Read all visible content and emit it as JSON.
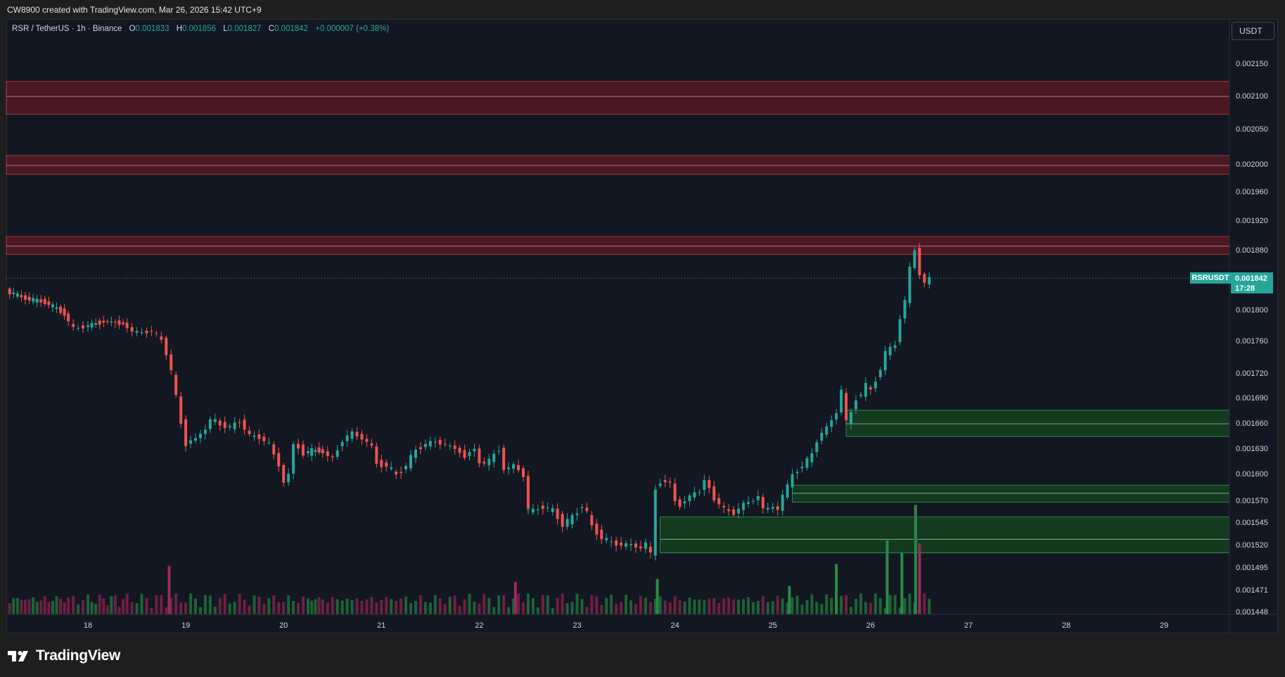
{
  "caption": "CW8900 created with TradingView.com, Mar 26, 2026 15:42 UTC+9",
  "legend": {
    "symbol": "RSR / TetherUS · 1h · Binance",
    "o_label": "O",
    "o_value": "0.001833",
    "h_label": "H",
    "h_value": "0.001856",
    "l_label": "L",
    "l_value": "0.001827",
    "c_label": "C",
    "c_value": "0.001842",
    "change": "+0.000007 (+0.38%)"
  },
  "currency_button": "USDT",
  "price_tag": {
    "symbol": "RSRUSDT",
    "price": "0.001842",
    "countdown": "17:28"
  },
  "logo_text": "TradingView",
  "colors": {
    "background": "#131722",
    "up": "#26a69a",
    "down": "#ef5350",
    "resistance": "#f23645",
    "support": "#089981"
  },
  "chart_data": {
    "type": "candlestick",
    "symbol": "RSRUSDT",
    "interval": "1h",
    "y_ticks": [
      0.00215,
      0.0021,
      0.00205,
      0.002,
      0.00196,
      0.00192,
      0.00188,
      0.0018,
      0.00176,
      0.00172,
      0.00169,
      0.00166,
      0.00163,
      0.0016,
      0.00157,
      0.001545,
      0.00152,
      0.001495,
      0.001471,
      0.001448
    ],
    "y_tick_labels": [
      "0.002150",
      "0.002100",
      "0.002050",
      "0.002000",
      "0.001960",
      "0.001920",
      "0.001880",
      "0.001800",
      "0.001760",
      "0.001720",
      "0.001690",
      "0.001660",
      "0.001630",
      "0.001600",
      "0.001570",
      "0.001545",
      "0.001520",
      "0.001495",
      "0.001471",
      "0.001448"
    ],
    "x_labels": [
      "18",
      "19",
      "20",
      "21",
      "22",
      "23",
      "24",
      "25",
      "26",
      "27",
      "28",
      "29"
    ],
    "x_days": [
      18,
      19,
      20,
      21,
      22,
      23,
      24,
      25,
      26,
      27,
      28,
      29
    ],
    "last_price": 0.001842,
    "zones": [
      {
        "kind": "resistance",
        "from": 0.002072,
        "to": 0.002122,
        "mid": 0.002099
      },
      {
        "kind": "resistance",
        "from": 0.001985,
        "to": 0.002012,
        "mid": 0.001998
      },
      {
        "kind": "resistance",
        "from": 0.001874,
        "to": 0.001898,
        "mid": 0.001885
      },
      {
        "kind": "support",
        "from": 0.001644,
        "to": 0.001675,
        "mid": 0.001659,
        "start_day": 25.75
      },
      {
        "kind": "support",
        "from": 0.001568,
        "to": 0.001587,
        "mid": 0.001578,
        "start_day": 25.2
      },
      {
        "kind": "support",
        "from": 0.001511,
        "to": 0.001551,
        "mid": 0.001526,
        "start_day": 23.85
      }
    ],
    "close_path": [
      [
        17.2,
        0.001825
      ],
      [
        17.4,
        0.001815
      ],
      [
        17.6,
        0.00181
      ],
      [
        17.8,
        0.001795
      ],
      [
        17.9,
        0.001775
      ],
      [
        18.0,
        0.001778
      ],
      [
        18.2,
        0.001785
      ],
      [
        18.4,
        0.001782
      ],
      [
        18.5,
        0.001772
      ],
      [
        18.6,
        0.00177
      ],
      [
        18.7,
        0.001773
      ],
      [
        18.8,
        0.00176
      ],
      [
        18.85,
        0.001745
      ],
      [
        18.9,
        0.001722
      ],
      [
        18.95,
        0.00169
      ],
      [
        19.0,
        0.00166
      ],
      [
        19.05,
        0.001636
      ],
      [
        19.15,
        0.001642
      ],
      [
        19.25,
        0.001652
      ],
      [
        19.3,
        0.001665
      ],
      [
        19.4,
        0.001658
      ],
      [
        19.5,
        0.001655
      ],
      [
        19.6,
        0.001662
      ],
      [
        19.7,
        0.001645
      ],
      [
        19.8,
        0.001643
      ],
      [
        19.9,
        0.001635
      ],
      [
        20.0,
        0.00161
      ],
      [
        20.05,
        0.00159
      ],
      [
        20.1,
        0.0016
      ],
      [
        20.15,
        0.001635
      ],
      [
        20.25,
        0.001625
      ],
      [
        20.4,
        0.001628
      ],
      [
        20.5,
        0.001622
      ],
      [
        20.55,
        0.001618
      ],
      [
        20.65,
        0.00164
      ],
      [
        20.75,
        0.001648
      ],
      [
        20.85,
        0.001642
      ],
      [
        20.95,
        0.001632
      ],
      [
        21.0,
        0.001612
      ],
      [
        21.1,
        0.00161
      ],
      [
        21.2,
        0.001598
      ],
      [
        21.3,
        0.00161
      ],
      [
        21.4,
        0.001628
      ],
      [
        21.5,
        0.001635
      ],
      [
        21.6,
        0.001638
      ],
      [
        21.7,
        0.001634
      ],
      [
        21.8,
        0.00163
      ],
      [
        21.85,
        0.001625
      ],
      [
        21.9,
        0.001621
      ],
      [
        22.0,
        0.00163
      ],
      [
        22.05,
        0.001612
      ],
      [
        22.15,
        0.001615
      ],
      [
        22.25,
        0.00163
      ],
      [
        22.3,
        0.001605
      ],
      [
        22.4,
        0.00161
      ],
      [
        22.5,
        0.001598
      ],
      [
        22.5,
        0.00156
      ],
      [
        22.6,
        0.001558
      ],
      [
        22.7,
        0.001563
      ],
      [
        22.8,
        0.001558
      ],
      [
        22.9,
        0.001543
      ],
      [
        23.0,
        0.00155
      ],
      [
        23.1,
        0.001565
      ],
      [
        23.15,
        0.001555
      ],
      [
        23.2,
        0.00154
      ],
      [
        23.3,
        0.001528
      ],
      [
        23.4,
        0.001522
      ],
      [
        23.5,
        0.00152
      ],
      [
        23.6,
        0.00152
      ],
      [
        23.7,
        0.001516
      ],
      [
        23.75,
        0.001522
      ],
      [
        23.8,
        0.001508
      ],
      [
        23.85,
        0.001582
      ],
      [
        23.9,
        0.001592
      ],
      [
        24.0,
        0.00159
      ],
      [
        24.05,
        0.001568
      ],
      [
        24.1,
        0.001565
      ],
      [
        24.2,
        0.001575
      ],
      [
        24.3,
        0.00158
      ],
      [
        24.35,
        0.001594
      ],
      [
        24.45,
        0.001572
      ],
      [
        24.55,
        0.00156
      ],
      [
        24.65,
        0.001555
      ],
      [
        24.75,
        0.001566
      ],
      [
        24.85,
        0.00157
      ],
      [
        24.9,
        0.001575
      ],
      [
        24.95,
        0.00156
      ],
      [
        25.05,
        0.001562
      ],
      [
        25.1,
        0.00156
      ],
      [
        25.15,
        0.001575
      ],
      [
        25.25,
        0.001598
      ],
      [
        25.35,
        0.00161
      ],
      [
        25.45,
        0.001622
      ],
      [
        25.5,
        0.00164
      ],
      [
        25.6,
        0.001655
      ],
      [
        25.7,
        0.001672
      ],
      [
        25.75,
        0.0017
      ],
      [
        25.8,
        0.00166
      ],
      [
        25.85,
        0.001672
      ],
      [
        25.9,
        0.00169
      ],
      [
        25.95,
        0.001695
      ],
      [
        26.0,
        0.001705
      ],
      [
        26.05,
        0.001698
      ],
      [
        26.1,
        0.001712
      ],
      [
        26.15,
        0.001726
      ],
      [
        26.2,
        0.001745
      ],
      [
        26.3,
        0.001755
      ],
      [
        26.35,
        0.00179
      ],
      [
        26.4,
        0.001812
      ],
      [
        26.45,
        0.001855
      ],
      [
        26.5,
        0.00188
      ],
      [
        26.55,
        0.001848
      ],
      [
        26.6,
        0.001836
      ],
      [
        26.63,
        0.001842
      ]
    ],
    "volume": {
      "label": "Volume",
      "baseline_levels": "low",
      "spikes": [
        {
          "day": 18.83,
          "dir": "down",
          "level": 0.82
        },
        {
          "day": 22.37,
          "dir": "down",
          "level": 0.55
        },
        {
          "day": 23.82,
          "dir": "up",
          "level": 0.6
        },
        {
          "day": 25.17,
          "dir": "up",
          "level": 0.48
        },
        {
          "day": 25.65,
          "dir": "up",
          "level": 0.85
        },
        {
          "day": 26.17,
          "dir": "up",
          "level": 1.25
        },
        {
          "day": 26.32,
          "dir": "up",
          "level": 1.05
        },
        {
          "day": 26.46,
          "dir": "up",
          "level": 1.85
        },
        {
          "day": 26.5,
          "dir": "down",
          "level": 1.2
        }
      ]
    }
  }
}
